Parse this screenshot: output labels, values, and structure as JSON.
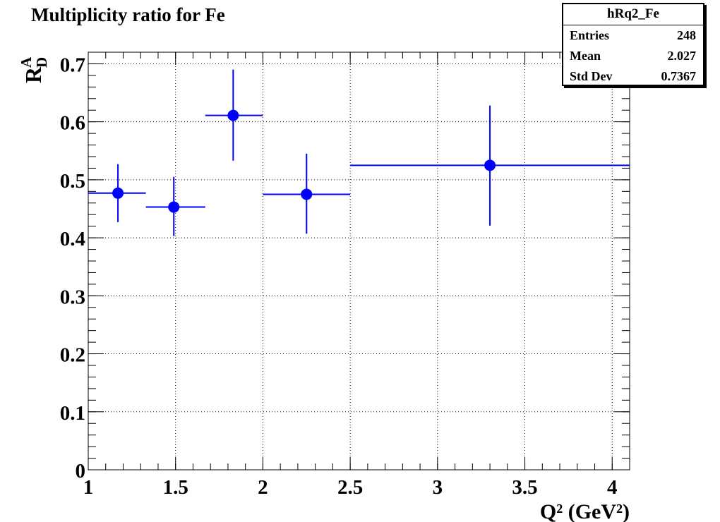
{
  "title": "Multiplicity ratio for Fe",
  "stats": {
    "name": "hRq2_Fe",
    "rows": [
      {
        "label": "Entries",
        "value": "248"
      },
      {
        "label": "Mean",
        "value": "2.027"
      },
      {
        "label": "Std Dev",
        "value": "0.7367"
      }
    ]
  },
  "chart_data": {
    "type": "scatter",
    "xlabel": "Q² (GeV²)",
    "ylabel": "R_D^A",
    "xlim": [
      1,
      4.1
    ],
    "ylim": [
      0,
      0.72
    ],
    "xticks": [
      "1",
      "1.5",
      "2",
      "2.5",
      "3",
      "3.5",
      "4"
    ],
    "yticks": [
      "0",
      "0.1",
      "0.2",
      "0.3",
      "0.4",
      "0.5",
      "0.6",
      "0.7"
    ],
    "grid": true,
    "marker_color": "#0000ff",
    "points": [
      {
        "x": 1.17,
        "y": 0.477,
        "xlo": 1.0,
        "xhi": 1.33,
        "ylo": 0.427,
        "yhi": 0.527
      },
      {
        "x": 1.49,
        "y": 0.453,
        "xlo": 1.33,
        "xhi": 1.67,
        "ylo": 0.403,
        "yhi": 0.505
      },
      {
        "x": 1.83,
        "y": 0.611,
        "xlo": 1.67,
        "xhi": 2.0,
        "ylo": 0.533,
        "yhi": 0.69
      },
      {
        "x": 2.25,
        "y": 0.475,
        "xlo": 2.0,
        "xhi": 2.5,
        "ylo": 0.407,
        "yhi": 0.545
      },
      {
        "x": 3.3,
        "y": 0.525,
        "xlo": 2.5,
        "xhi": 4.1,
        "ylo": 0.421,
        "yhi": 0.628
      }
    ]
  }
}
